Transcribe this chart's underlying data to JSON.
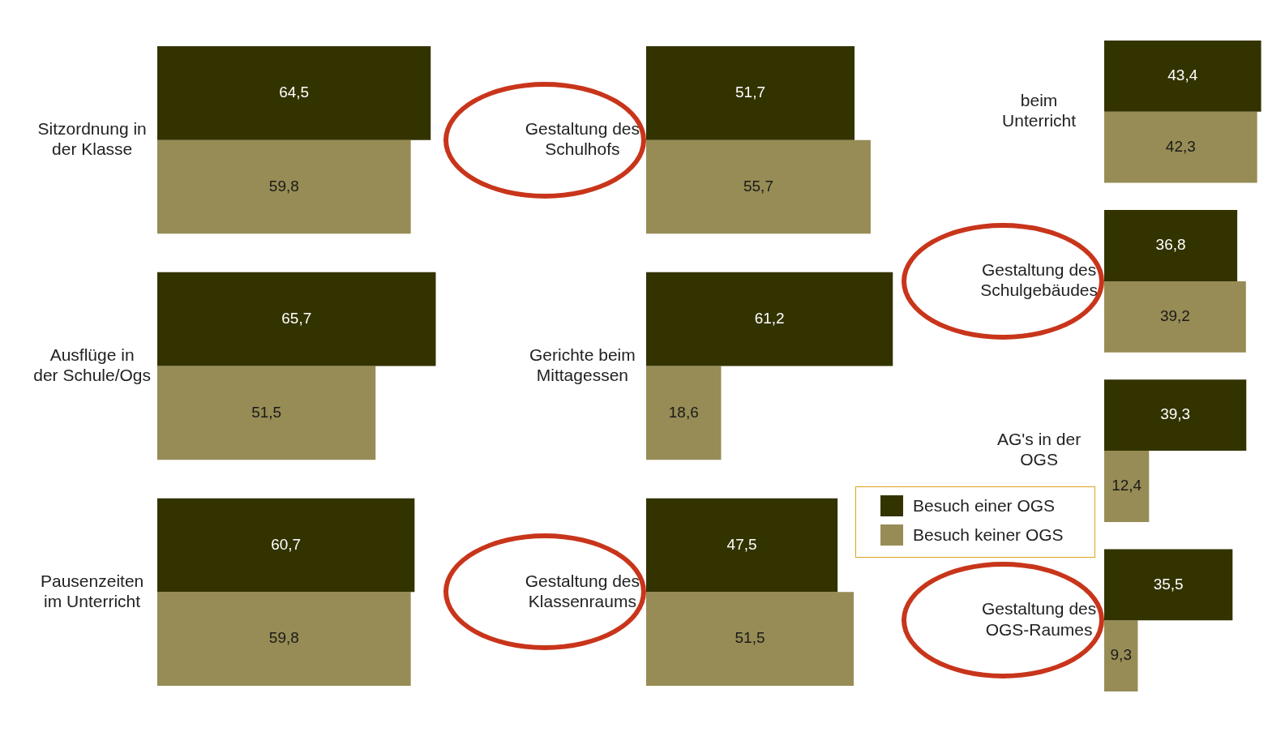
{
  "chart_data": [
    {
      "type": "bar",
      "orientation": "horizontal",
      "categories": [
        "Sitzordnung in der Klasse",
        "Ausflüge in der Schule/Ogs",
        "Pausenzeiten im Unterricht"
      ],
      "series": [
        {
          "color": "#333300",
          "values": [
            64.5,
            65.7,
            60.7
          ],
          "value_labels": [
            "64,5",
            "65,7",
            "60,7"
          ]
        },
        {
          "color": "#978c55",
          "values": [
            59.8,
            51.5,
            59.8
          ],
          "value_labels": [
            "59,8",
            "51,5",
            "59,8"
          ]
        }
      ],
      "tick_labels": "y"
    },
    {
      "type": "bar",
      "orientation": "horizontal",
      "categories": [
        "Gestaltung des Schulhofs",
        "Gerichte beim Mittagessen",
        "Gestaltung des Klassenraums"
      ],
      "series": [
        {
          "color": "#333300",
          "values": [
            51.7,
            61.2,
            47.5
          ],
          "value_labels": [
            "51,7",
            "61,2",
            "47,5"
          ]
        },
        {
          "color": "#978c55",
          "values": [
            55.7,
            18.6,
            51.5
          ],
          "value_labels": [
            "55,7",
            "18,6",
            "51,5"
          ]
        }
      ],
      "tick_labels": "y"
    },
    {
      "type": "bar",
      "orientation": "horizontal",
      "categories": [
        "beim Unterricht",
        "Gestaltung des Schulgebäudes",
        "AG's in der OGS",
        "Gestaltung des OGS-Raumes"
      ],
      "series": [
        {
          "name": "Besuch einer OGS",
          "color": "#333300",
          "values": [
            43.4,
            36.8,
            39.3,
            35.5
          ],
          "value_labels": [
            "43,4",
            "36,8",
            "39,3",
            "35,5"
          ]
        },
        {
          "name": "Besuch keiner OGS",
          "color": "#978c55",
          "values": [
            42.3,
            39.2,
            12.4,
            9.3
          ],
          "value_labels": [
            "42,3",
            "39,2",
            "12,4",
            "9,3"
          ]
        }
      ],
      "tick_labels": "y",
      "legend": "bottom left"
    }
  ]
}
